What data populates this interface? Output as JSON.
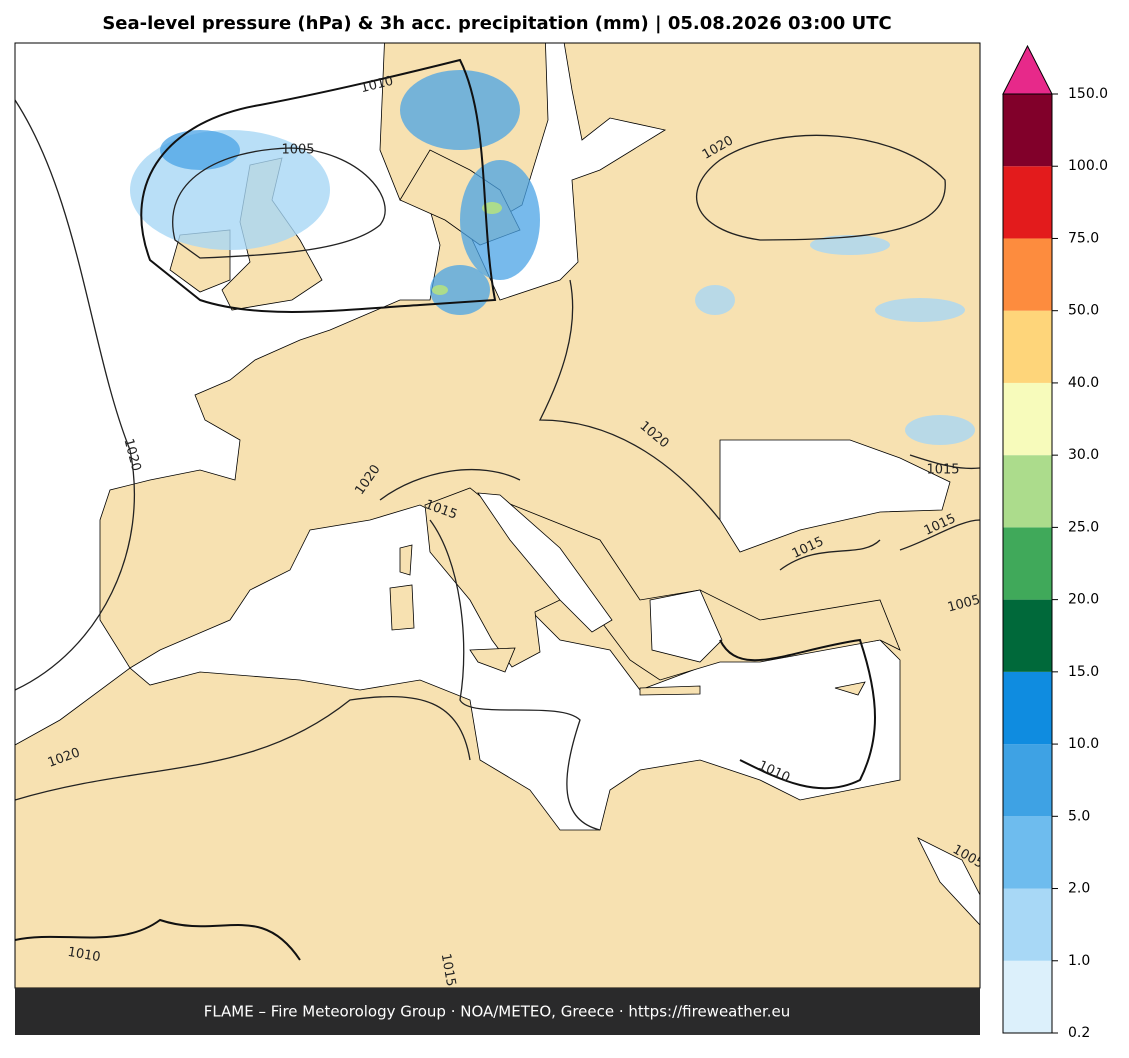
{
  "title": "Sea-level pressure (hPa) & 3h acc. precipitation (mm)  |  05.08.2026 03:00 UTC",
  "footer": "FLAME – Fire Meteorology Group · NOA/METEO, Greece · https://fireweather.eu",
  "colorbar": {
    "ticks": [
      0.2,
      {
        "value": 1,
        "label": "1.0"
      },
      {
        "value": 2,
        "label": "2.0"
      },
      {
        "value": 5,
        "label": "5.0"
      },
      {
        "value": 10,
        "label": "10.0"
      },
      {
        "value": 15,
        "label": "15.0"
      },
      {
        "value": 20,
        "label": "20.0"
      },
      {
        "value": 25,
        "label": "25.0"
      },
      {
        "value": 30,
        "label": "30.0"
      },
      {
        "value": 40,
        "label": "40.0"
      },
      {
        "value": 50,
        "label": "50.0"
      },
      {
        "value": 75,
        "label": "75.0"
      },
      {
        "value": 100,
        "label": "100.0"
      },
      {
        "value": 150,
        "label": "150.0"
      }
    ],
    "colors": [
      "#dcf0fb",
      "#a8d8f6",
      "#6ebcee",
      "#3ea2e4",
      "#0f8ce0",
      "#00693a",
      "#40a95a",
      "#acdc8c",
      "#f7fbbb",
      "#fed57a",
      "#fd8c3e",
      "#e31b1c",
      "#81002a"
    ],
    "extend_color": "#e7298a"
  },
  "contour_labels": [
    "1010",
    "1005",
    "1020",
    "1020",
    "1020",
    "1015",
    "1020",
    "1015",
    "1015",
    "1015",
    "1005",
    "1010",
    "1020",
    "1010",
    "1015",
    "1005"
  ]
}
